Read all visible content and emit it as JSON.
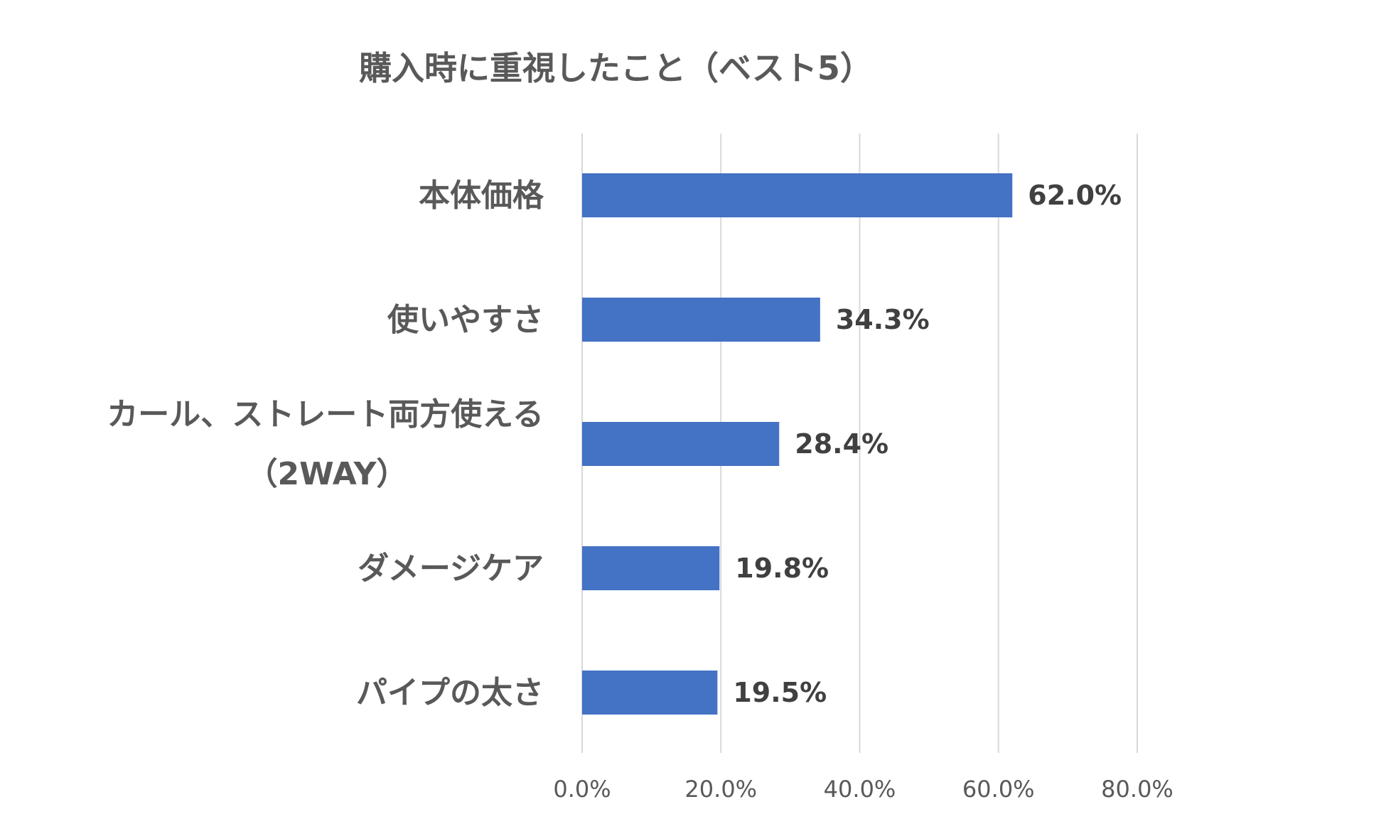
{
  "chart_data": {
    "type": "bar",
    "orientation": "horizontal",
    "title": "購入時に重視したこと（ベスト5）",
    "categories": [
      [
        "本体価格"
      ],
      [
        "使いやすさ"
      ],
      [
        "カール、ストレート両方使える",
        "（2WAY）"
      ],
      [
        "ダメージケア"
      ],
      [
        "パイプの太さ"
      ]
    ],
    "values": [
      62.0,
      34.3,
      28.4,
      19.8,
      19.5
    ],
    "value_labels": [
      "62.0%",
      "34.3%",
      "28.4%",
      "19.8%",
      "19.5%"
    ],
    "xlim": [
      0,
      80
    ],
    "xticks": [
      0,
      20,
      40,
      60,
      80
    ],
    "xtick_labels": [
      "0.0%",
      "20.0%",
      "40.0%",
      "60.0%",
      "80.0%"
    ],
    "grid": true,
    "legend": "none",
    "bar_color": "#4472C4"
  }
}
